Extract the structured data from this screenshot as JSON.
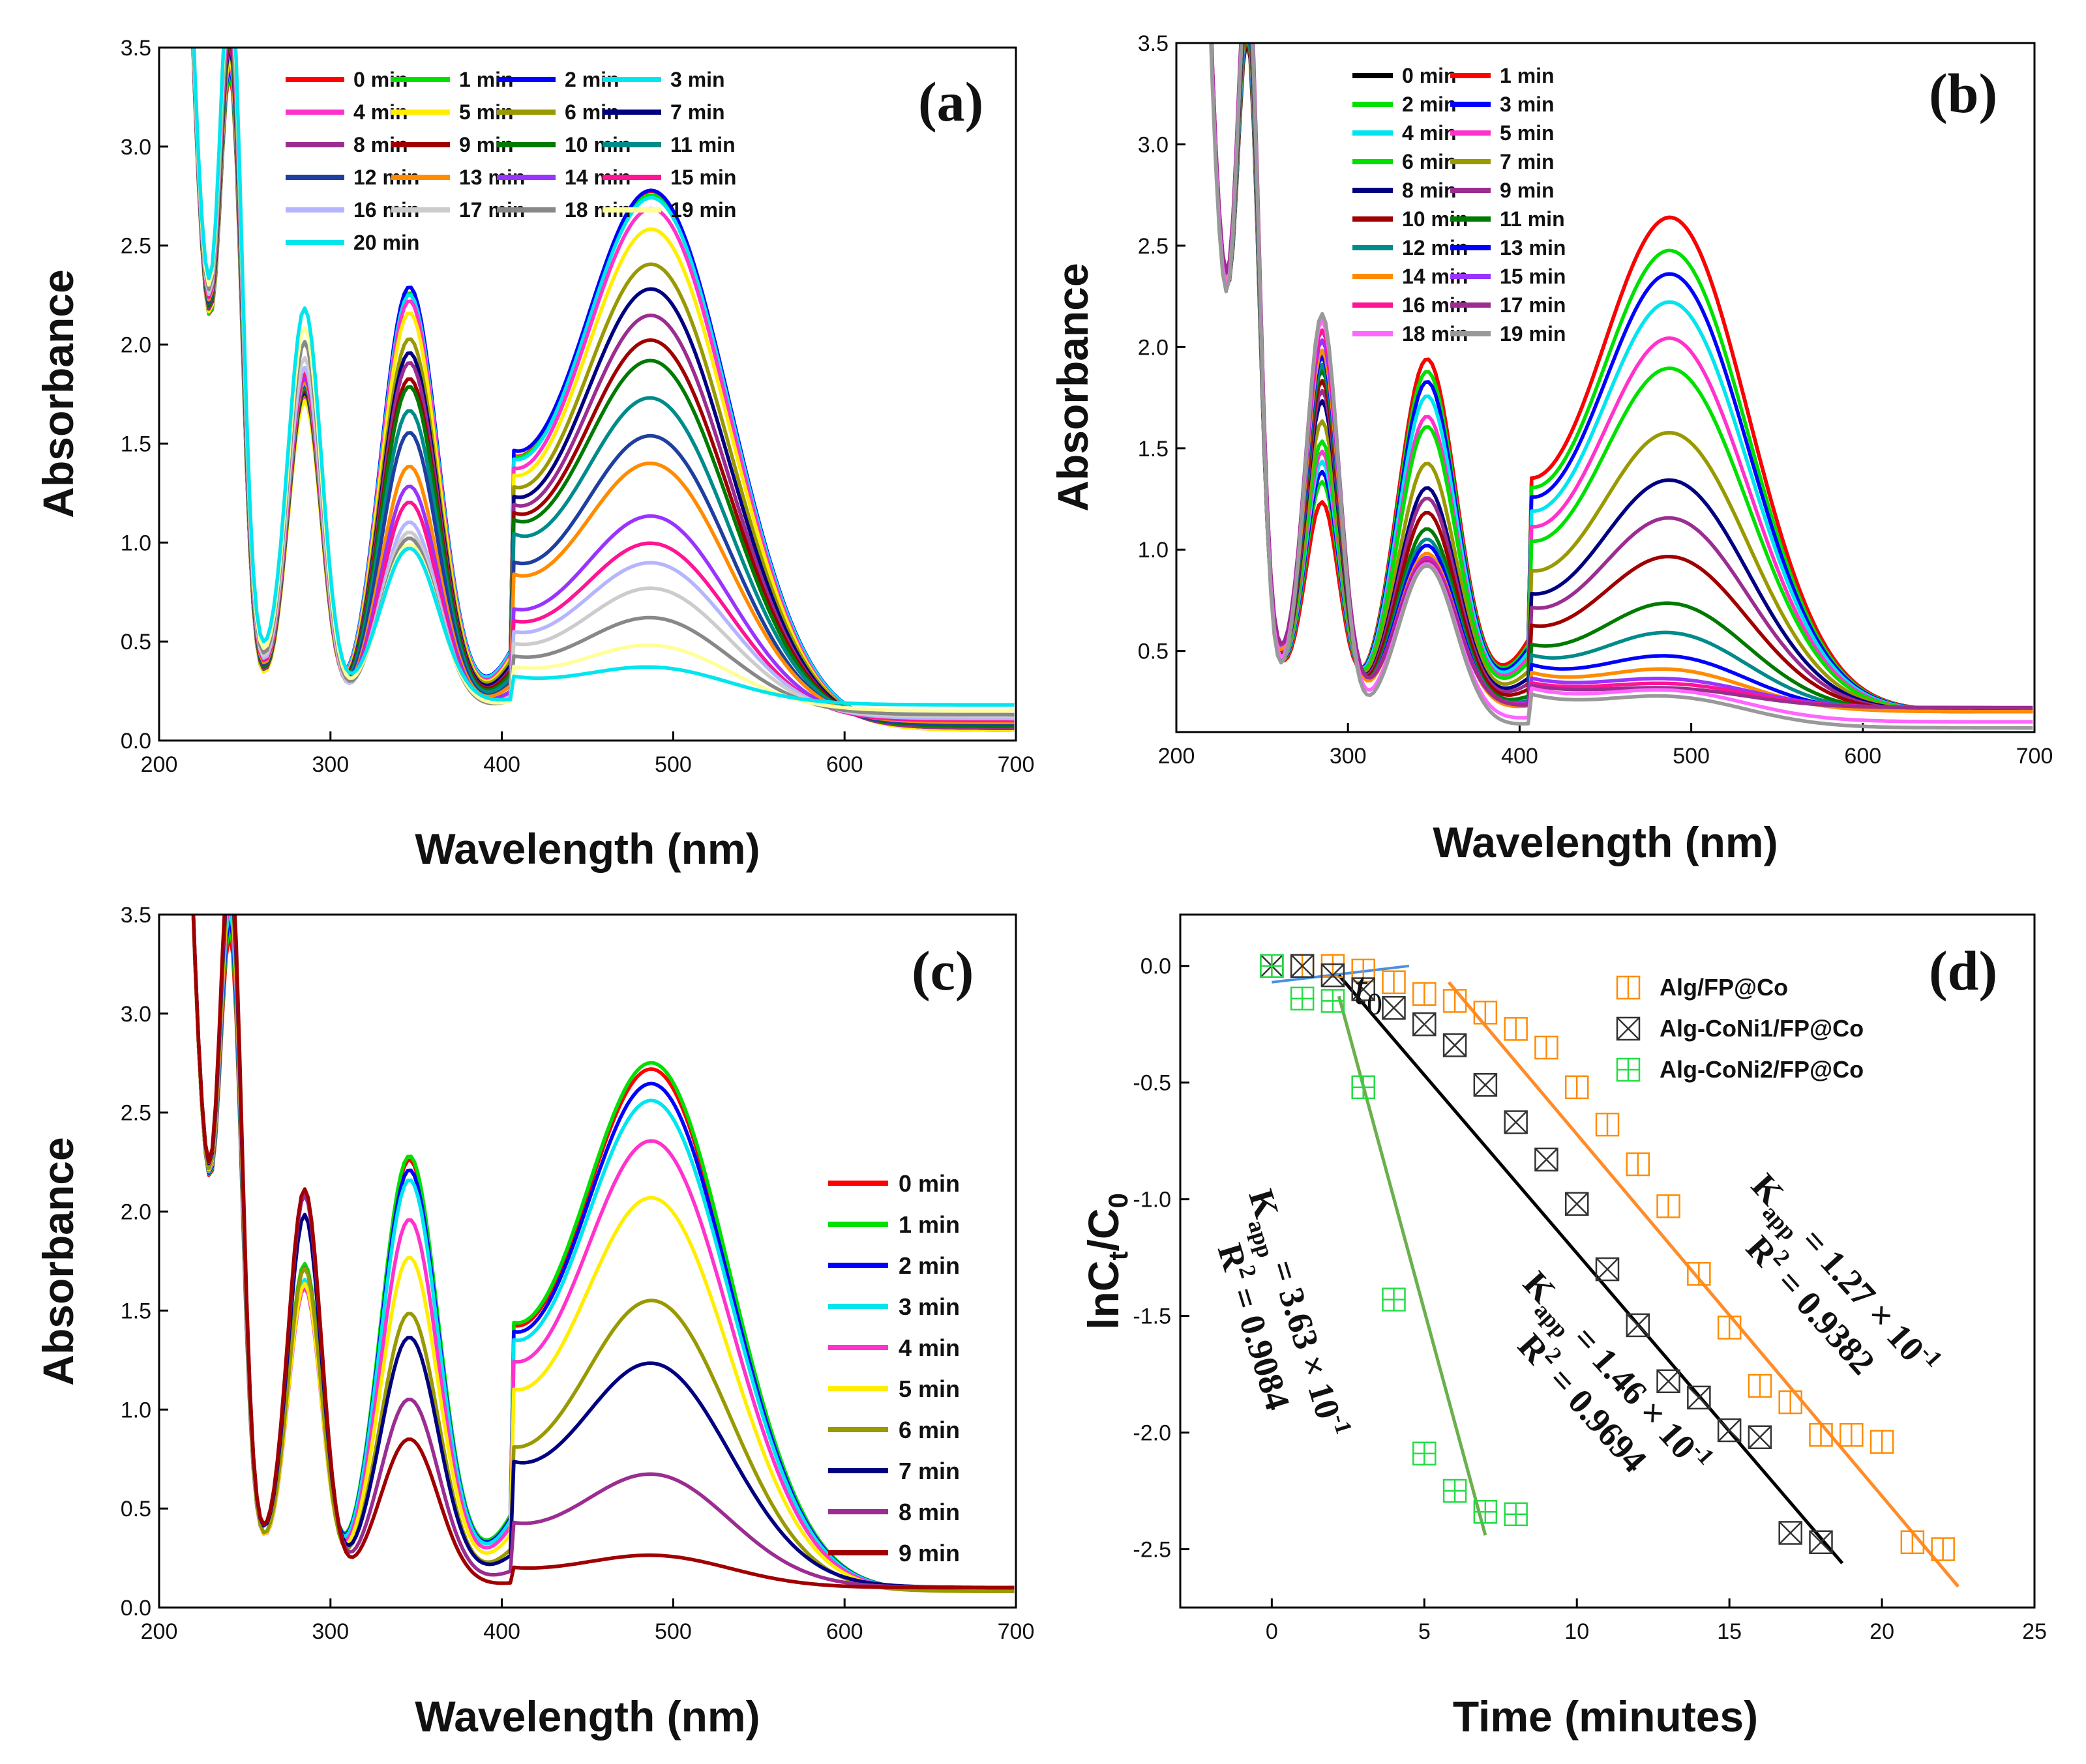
{
  "chart_data": [
    {
      "type": "line",
      "panel_label": "(a)",
      "xlabel": "Wavelength (nm)",
      "ylabel": "Absorbance",
      "xlim": [
        200,
        700
      ],
      "ylim": [
        0.0,
        3.5
      ],
      "xticks": [
        "200",
        "300",
        "400",
        "500",
        "600",
        "700"
      ],
      "yticks": [
        "0.0",
        "0.5",
        "1.0",
        "1.5",
        "2.0",
        "2.5",
        "3.0",
        "3.5"
      ],
      "legend_position": "top-left, 4 columns",
      "series": [
        {
          "name": "0 min",
          "color": "#ff0000",
          "A290": 1.7,
          "A345": 2.25,
          "A405": 1.05,
          "A490": 2.6,
          "tail": 0.05
        },
        {
          "name": "1 min",
          "color": "#00e000",
          "A290": 1.7,
          "A345": 2.25,
          "A405": 1.05,
          "A490": 2.58,
          "tail": 0.05
        },
        {
          "name": "2 min",
          "color": "#0000ff",
          "A290": 1.71,
          "A345": 2.28,
          "A405": 1.08,
          "A490": 2.6,
          "tail": 0.06
        },
        {
          "name": "3 min",
          "color": "#00e5ee",
          "A290": 1.72,
          "A345": 2.24,
          "A405": 1.04,
          "A490": 2.57,
          "tail": 0.06
        },
        {
          "name": "4 min",
          "color": "#ff33cc",
          "A290": 1.7,
          "A345": 2.21,
          "A405": 1.0,
          "A490": 2.52,
          "tail": 0.05
        },
        {
          "name": "5 min",
          "color": "#ffee00",
          "A290": 1.68,
          "A345": 2.15,
          "A405": 0.98,
          "A490": 2.42,
          "tail": 0.05
        },
        {
          "name": "6 min",
          "color": "#999900",
          "A290": 1.72,
          "A345": 2.02,
          "A405": 0.95,
          "A490": 2.25,
          "tail": 0.06
        },
        {
          "name": "7 min",
          "color": "#000080",
          "A290": 1.73,
          "A345": 1.95,
          "A405": 0.92,
          "A490": 2.13,
          "tail": 0.06
        },
        {
          "name": "8 min",
          "color": "#9b2d91",
          "A290": 1.74,
          "A345": 1.9,
          "A405": 0.9,
          "A490": 2.0,
          "tail": 0.06
        },
        {
          "name": "9 min",
          "color": "#a00000",
          "A290": 1.74,
          "A345": 1.82,
          "A405": 0.88,
          "A490": 1.88,
          "tail": 0.07
        },
        {
          "name": "10 min",
          "color": "#007a00",
          "A290": 1.75,
          "A345": 1.78,
          "A405": 0.86,
          "A490": 1.78,
          "tail": 0.07
        },
        {
          "name": "11 min",
          "color": "#008b8b",
          "A290": 1.76,
          "A345": 1.66,
          "A405": 0.82,
          "A490": 1.6,
          "tail": 0.08
        },
        {
          "name": "12 min",
          "color": "#1f3fa0",
          "A290": 1.77,
          "A345": 1.55,
          "A405": 0.7,
          "A490": 1.43,
          "tail": 0.08
        },
        {
          "name": "13 min",
          "color": "#ff8c00",
          "A290": 1.78,
          "A345": 1.38,
          "A405": 0.66,
          "A490": 1.3,
          "tail": 0.09
        },
        {
          "name": "14 min",
          "color": "#9933ff",
          "A290": 1.8,
          "A345": 1.28,
          "A405": 0.52,
          "A490": 1.06,
          "tail": 0.1
        },
        {
          "name": "15 min",
          "color": "#ff1493",
          "A290": 1.82,
          "A345": 1.2,
          "A405": 0.48,
          "A490": 0.93,
          "tail": 0.1
        },
        {
          "name": "16 min",
          "color": "#b5b5ff",
          "A290": 1.85,
          "A345": 1.1,
          "A405": 0.44,
          "A490": 0.84,
          "tail": 0.11
        },
        {
          "name": "17 min",
          "color": "#cccccc",
          "A290": 1.9,
          "A345": 1.05,
          "A405": 0.4,
          "A490": 0.72,
          "tail": 0.12
        },
        {
          "name": "18 min",
          "color": "#888888",
          "A290": 1.98,
          "A345": 1.02,
          "A405": 0.36,
          "A490": 0.58,
          "tail": 0.13
        },
        {
          "name": "19 min",
          "color": "#ffff99",
          "A290": 2.05,
          "A345": 0.99,
          "A405": 0.33,
          "A490": 0.45,
          "tail": 0.15
        },
        {
          "name": "20 min",
          "color": "#00e5ee",
          "A290": 2.15,
          "A345": 0.97,
          "A405": 0.3,
          "A490": 0.35,
          "tail": 0.18
        }
      ]
    },
    {
      "type": "line",
      "panel_label": "(b)",
      "xlabel": "Wavelength (nm)",
      "ylabel": "Absorbance",
      "xlim": [
        200,
        700
      ],
      "ylim": [
        0.1,
        3.5
      ],
      "xticks": [
        "200",
        "300",
        "400",
        "500",
        "600",
        "700"
      ],
      "yticks": [
        "0.5",
        "1.0",
        "1.5",
        "2.0",
        "2.5",
        "3.0",
        "3.5"
      ],
      "legend_position": "top-left, 2 columns",
      "series": [
        {
          "name": "0 min",
          "color": "#000000",
          "A290": 1.2,
          "A345": 1.93,
          "A405": 1.0,
          "A490": 2.5,
          "tail": 0.2
        },
        {
          "name": "1 min",
          "color": "#ff0000",
          "A290": 1.2,
          "A345": 1.93,
          "A405": 1.0,
          "A490": 2.5,
          "tail": 0.2
        },
        {
          "name": "2 min",
          "color": "#00e000",
          "A290": 1.3,
          "A345": 1.87,
          "A405": 0.98,
          "A490": 2.34,
          "tail": 0.2
        },
        {
          "name": "3 min",
          "color": "#0000ff",
          "A290": 1.35,
          "A345": 1.82,
          "A405": 0.95,
          "A490": 2.23,
          "tail": 0.2
        },
        {
          "name": "4 min",
          "color": "#00e5ee",
          "A290": 1.4,
          "A345": 1.75,
          "A405": 0.9,
          "A490": 2.1,
          "tail": 0.2
        },
        {
          "name": "5 min",
          "color": "#ff33cc",
          "A290": 1.45,
          "A345": 1.65,
          "A405": 0.85,
          "A490": 1.93,
          "tail": 0.2
        },
        {
          "name": "6 min",
          "color": "#00e000",
          "A290": 1.5,
          "A345": 1.6,
          "A405": 0.8,
          "A490": 1.79,
          "tail": 0.2
        },
        {
          "name": "7 min",
          "color": "#999900",
          "A290": 1.6,
          "A345": 1.42,
          "A405": 0.7,
          "A490": 1.49,
          "tail": 0.2
        },
        {
          "name": "8 min",
          "color": "#000080",
          "A290": 1.7,
          "A345": 1.3,
          "A405": 0.62,
          "A490": 1.27,
          "tail": 0.2
        },
        {
          "name": "9 min",
          "color": "#9b2d91",
          "A290": 1.75,
          "A345": 1.25,
          "A405": 0.58,
          "A490": 1.09,
          "tail": 0.2
        },
        {
          "name": "10 min",
          "color": "#a00000",
          "A290": 1.8,
          "A345": 1.18,
          "A405": 0.52,
          "A490": 0.91,
          "tail": 0.2
        },
        {
          "name": "11 min",
          "color": "#007a00",
          "A290": 1.85,
          "A345": 1.1,
          "A405": 0.46,
          "A490": 0.69,
          "tail": 0.2
        },
        {
          "name": "12 min",
          "color": "#008b8b",
          "A290": 1.88,
          "A345": 1.05,
          "A405": 0.43,
          "A490": 0.55,
          "tail": 0.2
        },
        {
          "name": "13 min",
          "color": "#0000ff",
          "A290": 1.92,
          "A345": 1.02,
          "A405": 0.4,
          "A490": 0.44,
          "tail": 0.2
        },
        {
          "name": "14 min",
          "color": "#ff8c00",
          "A290": 1.95,
          "A345": 0.98,
          "A405": 0.37,
          "A490": 0.38,
          "tail": 0.2
        },
        {
          "name": "15 min",
          "color": "#9933ff",
          "A290": 2.0,
          "A345": 0.96,
          "A405": 0.35,
          "A490": 0.34,
          "tail": 0.22
        },
        {
          "name": "16 min",
          "color": "#ff1493",
          "A290": 2.05,
          "A345": 0.95,
          "A405": 0.33,
          "A490": 0.32,
          "tail": 0.22
        },
        {
          "name": "17 min",
          "color": "#9b2d91",
          "A290": 2.1,
          "A345": 0.94,
          "A405": 0.32,
          "A490": 0.3,
          "tail": 0.22
        },
        {
          "name": "18 min",
          "color": "#ff66ff",
          "A290": 2.1,
          "A345": 0.93,
          "A405": 0.3,
          "A490": 0.28,
          "tail": 0.15
        },
        {
          "name": "19 min",
          "color": "#999999",
          "A290": 2.13,
          "A345": 0.92,
          "A405": 0.27,
          "A490": 0.25,
          "tail": 0.12
        }
      ]
    },
    {
      "type": "line",
      "panel_label": "(c)",
      "xlabel": "Wavelength (nm)",
      "ylabel": "Absorbance",
      "xlim": [
        200,
        700
      ],
      "ylim": [
        0.0,
        3.5
      ],
      "xticks": [
        "200",
        "300",
        "400",
        "500",
        "600",
        "700"
      ],
      "yticks": [
        "0.0",
        "0.5",
        "1.0",
        "1.5",
        "2.0",
        "2.5",
        "3.0",
        "3.5"
      ],
      "legend_position": "right, 1 column",
      "series": [
        {
          "name": "0 min",
          "color": "#ff0000",
          "A290": 1.7,
          "A345": 2.25,
          "A405": 1.05,
          "A490": 2.55,
          "tail": 0.08
        },
        {
          "name": "1 min",
          "color": "#00e000",
          "A290": 1.7,
          "A345": 2.27,
          "A405": 1.06,
          "A490": 2.58,
          "tail": 0.08
        },
        {
          "name": "2 min",
          "color": "#0000ff",
          "A290": 1.68,
          "A345": 2.2,
          "A405": 1.03,
          "A490": 2.48,
          "tail": 0.08
        },
        {
          "name": "3 min",
          "color": "#00e5ee",
          "A290": 1.62,
          "A345": 2.15,
          "A405": 1.0,
          "A490": 2.4,
          "tail": 0.08
        },
        {
          "name": "4 min",
          "color": "#ff33cc",
          "A290": 1.58,
          "A345": 1.95,
          "A405": 0.92,
          "A490": 2.21,
          "tail": 0.08
        },
        {
          "name": "5 min",
          "color": "#ffee00",
          "A290": 1.6,
          "A345": 1.76,
          "A405": 0.82,
          "A490": 1.94,
          "tail": 0.08
        },
        {
          "name": "6 min",
          "color": "#999900",
          "A290": 1.68,
          "A345": 1.48,
          "A405": 0.6,
          "A490": 1.46,
          "tail": 0.08
        },
        {
          "name": "7 min",
          "color": "#000080",
          "A290": 1.95,
          "A345": 1.36,
          "A405": 0.58,
          "A490": 1.15,
          "tail": 0.1
        },
        {
          "name": "8 min",
          "color": "#9b2d91",
          "A290": 2.05,
          "A345": 1.05,
          "A405": 0.35,
          "A490": 0.63,
          "tail": 0.1
        },
        {
          "name": "9 min",
          "color": "#a00000",
          "A290": 2.08,
          "A345": 0.85,
          "A405": 0.18,
          "A490": 0.25,
          "tail": 0.1
        }
      ]
    },
    {
      "type": "scatter",
      "panel_label": "(d)",
      "xlabel": "Time (minutes)",
      "ylabel_main": "lnC",
      "ylabel_sub1": "t",
      "ylabel_mid": "/C",
      "ylabel_sub2": "0",
      "xlim": [
        -3,
        25
      ],
      "ylim": [
        -2.75,
        0.22
      ],
      "xticks": [
        "0",
        "5",
        "10",
        "15",
        "20",
        "25"
      ],
      "yticks": [
        "0.0",
        "-0.5",
        "-1.0",
        "-1.5",
        "-2.0",
        "-2.5"
      ],
      "t0_label": "t",
      "t0_sub": "0",
      "legend_position": "top-right",
      "series": [
        {
          "name": "Alg/FP@Co",
          "color": "#ff8c00",
          "marker": "square-bar",
          "x": [
            0,
            1,
            2,
            3,
            4,
            5,
            6,
            7,
            8,
            9,
            10,
            11,
            12,
            13,
            14,
            15,
            16,
            17,
            18,
            19,
            20,
            21,
            22
          ],
          "y": [
            0,
            0,
            0,
            -0.02,
            -0.07,
            -0.12,
            -0.15,
            -0.2,
            -0.27,
            -0.35,
            -0.52,
            -0.68,
            -0.85,
            -1.03,
            -1.32,
            -1.55,
            -1.8,
            -1.87,
            -2.01,
            -2.01,
            -2.04,
            -2.47,
            -2.5
          ],
          "fit_x": [
            5.8,
            22.5
          ],
          "fit_y": [
            -0.07,
            -2.66
          ]
        },
        {
          "name": "Alg-CoNi1/FP@Co",
          "color": "#333333",
          "marker": "square-x",
          "x": [
            0,
            1,
            2,
            3,
            4,
            5,
            6,
            7,
            8,
            9,
            10,
            11,
            12,
            13,
            14,
            15,
            16,
            17,
            18
          ],
          "y": [
            0,
            0,
            -0.04,
            -0.1,
            -0.18,
            -0.25,
            -0.34,
            -0.51,
            -0.67,
            -0.83,
            -1.02,
            -1.3,
            -1.54,
            -1.78,
            -1.85,
            -1.99,
            -2.02,
            -2.43,
            -2.47
          ],
          "fit_x": [
            2.2,
            18.7
          ],
          "fit_y": [
            -0.04,
            -2.56
          ]
        },
        {
          "name": "Alg-CoNi2/FP@Co",
          "color": "#22dd44",
          "marker": "square-plus",
          "x": [
            0,
            1,
            2,
            3,
            4,
            5,
            6,
            7,
            8
          ],
          "y": [
            0,
            -0.14,
            -0.15,
            -0.52,
            -1.43,
            -2.09,
            -2.25,
            -2.34,
            -2.35
          ],
          "fit_x": [
            2.2,
            7.0
          ],
          "fit_y": [
            -0.13,
            -2.44
          ]
        }
      ],
      "annotations": [
        {
          "kind": "kapp",
          "series": "Alg/FP@Co",
          "k_label": "K",
          "k_sub": "app",
          "k_value": " = 1.27 × 10",
          "exp": "-1",
          "r2_label": "R",
          "r2_sup": "2",
          "r2_value": " = 0.9382"
        },
        {
          "kind": "kapp",
          "series": "Alg-CoNi1/FP@Co",
          "k_label": "K",
          "k_sub": "app",
          "k_value": " = 1.46 × 10",
          "exp": "-1",
          "r2_label": "R",
          "r2_sup": "2",
          "r2_value": " = 0.9694"
        },
        {
          "kind": "kapp",
          "series": "Alg-CoNi2/FP@Co",
          "k_label": "K",
          "k_sub": "app",
          "k_value": " = 3.63 × 10",
          "exp": "-1",
          "r2_label": "R",
          "r2_sup": "2",
          "r2_value": " = 0.9084"
        }
      ]
    }
  ]
}
